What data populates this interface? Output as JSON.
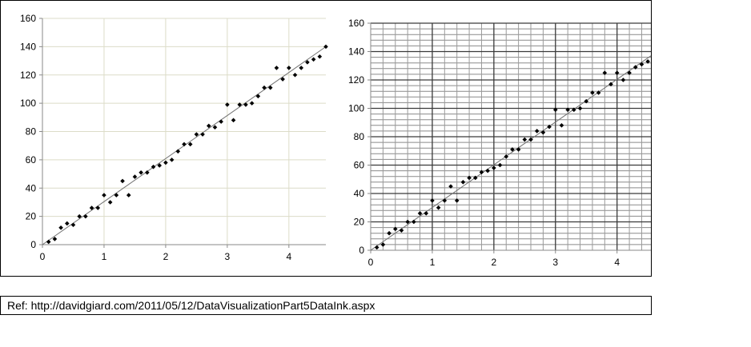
{
  "chart_data": [
    {
      "type": "scatter",
      "title": "",
      "xlabel": "",
      "ylabel": "",
      "xlim": [
        0,
        4.6
      ],
      "ylim": [
        0,
        160
      ],
      "x_ticks": [
        0,
        1,
        2,
        3,
        4
      ],
      "y_ticks": [
        0,
        20,
        40,
        60,
        80,
        100,
        120,
        140,
        160
      ],
      "grid": "light vertical and horizontal gridlines at major ticks",
      "trendline": {
        "x": [
          0,
          4.6
        ],
        "y": [
          0,
          140
        ]
      },
      "x": [
        0.1,
        0.2,
        0.3,
        0.4,
        0.5,
        0.6,
        0.7,
        0.8,
        0.9,
        1.0,
        1.1,
        1.2,
        1.3,
        1.4,
        1.5,
        1.6,
        1.7,
        1.8,
        1.9,
        2.0,
        2.1,
        2.2,
        2.3,
        2.4,
        2.5,
        2.6,
        2.7,
        2.8,
        2.9,
        3.0,
        3.1,
        3.2,
        3.3,
        3.4,
        3.5,
        3.6,
        3.7,
        3.8,
        3.9,
        4.0,
        4.1,
        4.2,
        4.3,
        4.4,
        4.5,
        4.6
      ],
      "y": [
        2,
        4,
        12,
        15,
        14,
        20,
        20,
        26,
        26,
        35,
        30,
        35,
        45,
        35,
        48,
        51,
        51,
        55,
        56,
        58,
        60,
        66,
        71,
        71,
        78,
        78,
        84,
        83,
        87,
        99,
        88,
        99,
        99,
        100,
        105,
        111,
        111,
        125,
        117,
        125,
        120,
        125,
        129,
        131,
        133,
        140
      ]
    },
    {
      "type": "scatter",
      "title": "",
      "xlabel": "",
      "ylabel": "",
      "xlim": [
        0,
        4.55
      ],
      "ylim": [
        0,
        160
      ],
      "x_ticks": [
        0,
        1,
        2,
        3,
        4
      ],
      "y_ticks": [
        0,
        20,
        40,
        60,
        80,
        100,
        120,
        140,
        160
      ],
      "grid": "dense dark gridlines (major and minor)",
      "trendline": {
        "x": [
          0,
          4.55
        ],
        "y": [
          0,
          137
        ]
      },
      "x": [
        0.1,
        0.2,
        0.3,
        0.4,
        0.5,
        0.6,
        0.7,
        0.8,
        0.9,
        1.0,
        1.1,
        1.2,
        1.3,
        1.4,
        1.5,
        1.6,
        1.7,
        1.8,
        1.9,
        2.0,
        2.1,
        2.2,
        2.3,
        2.4,
        2.5,
        2.6,
        2.7,
        2.8,
        2.9,
        3.0,
        3.1,
        3.2,
        3.3,
        3.4,
        3.5,
        3.6,
        3.7,
        3.8,
        3.9,
        4.0,
        4.1,
        4.2,
        4.3,
        4.4,
        4.5
      ],
      "y": [
        2,
        4,
        12,
        15,
        14,
        20,
        20,
        26,
        26,
        35,
        30,
        35,
        45,
        35,
        48,
        51,
        51,
        55,
        56,
        58,
        60,
        66,
        71,
        71,
        78,
        78,
        84,
        83,
        87,
        99,
        88,
        99,
        99,
        100,
        105,
        111,
        111,
        125,
        117,
        125,
        120,
        125,
        129,
        131,
        133
      ]
    }
  ],
  "reference": {
    "text": "Ref: http://davidgiard.com/2011/05/12/DataVisualizationPart5DataInk.aspx"
  }
}
